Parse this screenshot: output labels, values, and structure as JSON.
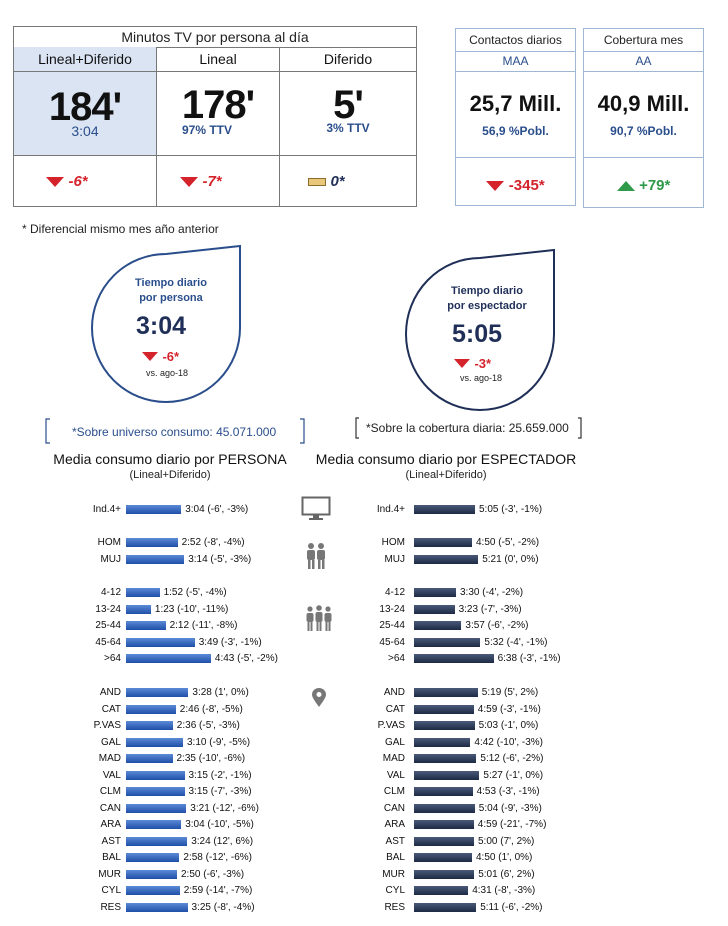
{
  "minutos": {
    "title": "Minutos TV por persona al día",
    "columns": [
      {
        "header": "Lineal+Diferido",
        "value": "184'",
        "sub": "3:04",
        "diff": "-6*",
        "trend": "down"
      },
      {
        "header": "Lineal",
        "value": "178'",
        "sub": "97% TTV",
        "diff": "-7*",
        "trend": "down"
      },
      {
        "header": "Diferido",
        "value": "5'",
        "sub": "3% TTV",
        "diff": "0*",
        "trend": "flat"
      }
    ]
  },
  "contactos": {
    "title": "Contactos diarios",
    "sub": "MAA",
    "value": "25,7 Mill.",
    "pct": "56,9 %Pobl.",
    "diff": "-345*",
    "trend": "down"
  },
  "cobertura": {
    "title": "Cobertura mes",
    "sub": "AA",
    "value": "40,9 Mill.",
    "pct": "90,7 %Pobl.",
    "diff": "+79*",
    "trend": "up"
  },
  "footnote": "* Diferencial mismo mes año anterior",
  "drop_persona": {
    "title1": "Tiempo diario",
    "title2": "por persona",
    "value": "3:04",
    "diff": "-6*",
    "vs": "vs. ago-18"
  },
  "drop_espectador": {
    "title1": "Tiempo diario",
    "title2": "por espectador",
    "value": "5:05",
    "diff": "-3*",
    "vs": "vs. ago-18"
  },
  "universo_note": "*Sobre universo consumo: 45.071.000",
  "cobertura_note": "*Sobre la cobertura diaria: 25.659.000",
  "colors": {
    "blue_bar": "#1f4fa8",
    "navy_bar": "#1d2a45",
    "red": "#d4232b",
    "green": "#2e9a4a",
    "accent_blue": "#2a4e8c",
    "highlight": "#dbe4f3"
  },
  "chart_data": [
    {
      "type": "bar",
      "title": "Media consumo diario por PERSONA",
      "subtitle": "(Lineal+Diferido)",
      "groups": [
        {
          "icon": "tv-icon",
          "rows": [
            {
              "category": "Ind.4+",
              "value_min": 184,
              "label": "3:04 (-6', -3%)"
            }
          ]
        },
        {
          "icon": "couple-icon",
          "rows": [
            {
              "category": "HOM",
              "value_min": 172,
              "label": "2:52 (-8', -4%)"
            },
            {
              "category": "MUJ",
              "value_min": 194,
              "label": "3:14 (-5', -3%)"
            }
          ]
        },
        {
          "icon": "group-icon",
          "rows": [
            {
              "category": "4-12",
              "value_min": 112,
              "label": "1:52 (-5', -4%)"
            },
            {
              "category": "13-24",
              "value_min": 83,
              "label": "1:23 (-10', -11%)"
            },
            {
              "category": "25-44",
              "value_min": 132,
              "label": "2:12 (-11', -8%)"
            },
            {
              "category": "45-64",
              "value_min": 229,
              "label": "3:49 (-3', -1%)"
            },
            {
              "category": ">64",
              "value_min": 283,
              "label": "4:43 (-5', -2%)"
            }
          ]
        },
        {
          "icon": "location-pin-icon",
          "rows": [
            {
              "category": "AND",
              "value_min": 208,
              "label": "3:28 (1', 0%)"
            },
            {
              "category": "CAT",
              "value_min": 166,
              "label": "2:46 (-8', -5%)"
            },
            {
              "category": "P.VAS",
              "value_min": 156,
              "label": "2:36 (-5', -3%)"
            },
            {
              "category": "GAL",
              "value_min": 190,
              "label": "3:10 (-9', -5%)"
            },
            {
              "category": "MAD",
              "value_min": 155,
              "label": "2:35 (-10', -6%)"
            },
            {
              "category": "VAL",
              "value_min": 195,
              "label": "3:15 (-2', -1%)"
            },
            {
              "category": "CLM",
              "value_min": 195,
              "label": "3:15 (-7', -3%)"
            },
            {
              "category": "CAN",
              "value_min": 201,
              "label": "3:21 (-12', -6%)"
            },
            {
              "category": "ARA",
              "value_min": 184,
              "label": "3:04 (-10', -5%)"
            },
            {
              "category": "AST",
              "value_min": 204,
              "label": "3:24 (12', 6%)"
            },
            {
              "category": "BAL",
              "value_min": 178,
              "label": "2:58 (-12', -6%)"
            },
            {
              "category": "MUR",
              "value_min": 170,
              "label": "2:50 (-6', -3%)"
            },
            {
              "category": "CYL",
              "value_min": 179,
              "label": "2:59 (-14', -7%)"
            },
            {
              "category": "RES",
              "value_min": 205,
              "label": "3:25 (-8', -4%)"
            }
          ]
        }
      ]
    },
    {
      "type": "bar",
      "title": "Media consumo diario por ESPECTADOR",
      "subtitle": "(Lineal+Diferido)",
      "groups": [
        {
          "rows": [
            {
              "category": "Ind.4+",
              "value_min": 305,
              "label": "5:05 (-3', -1%)"
            }
          ]
        },
        {
          "rows": [
            {
              "category": "HOM",
              "value_min": 290,
              "label": "4:50 (-5', -2%)"
            },
            {
              "category": "MUJ",
              "value_min": 321,
              "label": "5:21 (0', 0%)"
            }
          ]
        },
        {
          "rows": [
            {
              "category": "4-12",
              "value_min": 210,
              "label": "3:30 (-4', -2%)"
            },
            {
              "category": "13-24",
              "value_min": 203,
              "label": "3:23 (-7', -3%)"
            },
            {
              "category": "25-44",
              "value_min": 237,
              "label": "3:57 (-6', -2%)"
            },
            {
              "category": "45-64",
              "value_min": 332,
              "label": "5:32 (-4', -1%)"
            },
            {
              "category": ">64",
              "value_min": 398,
              "label": "6:38 (-3', -1%)"
            }
          ]
        },
        {
          "rows": [
            {
              "category": "AND",
              "value_min": 319,
              "label": "5:19 (5', 2%)"
            },
            {
              "category": "CAT",
              "value_min": 299,
              "label": "4:59 (-3', -1%)"
            },
            {
              "category": "P.VAS",
              "value_min": 303,
              "label": "5:03 (-1', 0%)"
            },
            {
              "category": "GAL",
              "value_min": 282,
              "label": "4:42 (-10', -3%)"
            },
            {
              "category": "MAD",
              "value_min": 312,
              "label": "5:12 (-6', -2%)"
            },
            {
              "category": "VAL",
              "value_min": 327,
              "label": "5:27 (-1', 0%)"
            },
            {
              "category": "CLM",
              "value_min": 293,
              "label": "4:53 (-3', -1%)"
            },
            {
              "category": "CAN",
              "value_min": 304,
              "label": "5:04 (-9', -3%)"
            },
            {
              "category": "ARA",
              "value_min": 299,
              "label": "4:59 (-21', -7%)"
            },
            {
              "category": "AST",
              "value_min": 300,
              "label": "5:00 (7', 2%)"
            },
            {
              "category": "BAL",
              "value_min": 290,
              "label": "4:50 (1', 0%)"
            },
            {
              "category": "MUR",
              "value_min": 301,
              "label": "5:01 (6', 2%)"
            },
            {
              "category": "CYL",
              "value_min": 271,
              "label": "4:31 (-8', -3%)"
            },
            {
              "category": "RES",
              "value_min": 311,
              "label": "5:11 (-6', -2%)"
            }
          ]
        }
      ]
    }
  ]
}
